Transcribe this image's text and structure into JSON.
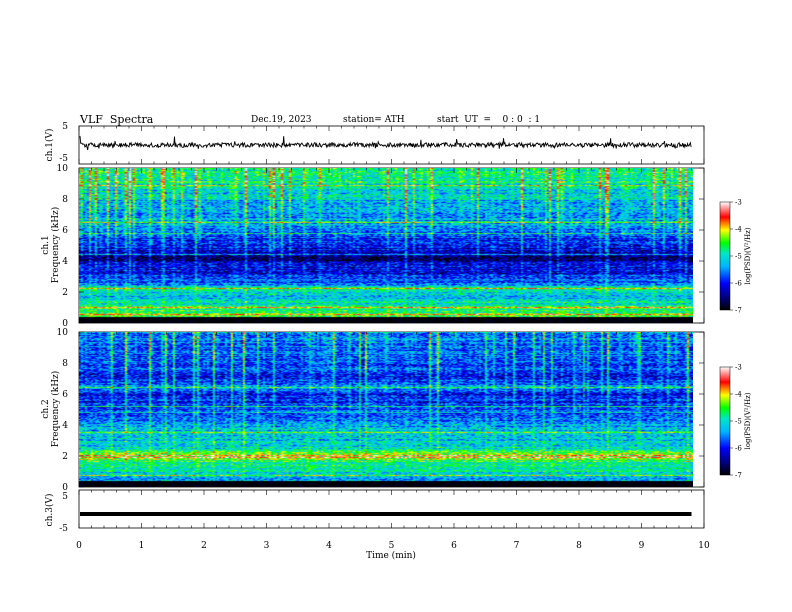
{
  "header": {
    "title": "VLF  Spectra",
    "date": "Dec.19, 2023",
    "station": "station= ATH",
    "start": "start  UT  =    0 : 0  : 1"
  },
  "chart_data": [
    {
      "type": "line",
      "panel": "ch1-waveform",
      "ylabel": "ch.1(V)",
      "ylim": [
        -5,
        5
      ],
      "yticks": [
        "5",
        "-5"
      ],
      "xlim": [
        0,
        10
      ],
      "data_end_min": 9.8,
      "baseline_v": 0.0,
      "noise_amplitude_v": 0.6,
      "spike_amplitude_v": 2.0
    },
    {
      "type": "heatmap",
      "panel": "ch1-spectrogram",
      "ylabel_channel": "ch.1",
      "ylabel": "Frequency  (kHz)",
      "ylim": [
        0,
        10
      ],
      "yticks": [
        "0",
        "2",
        "4",
        "6",
        "8",
        "10"
      ],
      "xlim": [
        0,
        10
      ],
      "data_end_min": 9.8,
      "colorbar": {
        "label": "log(PSD)(V²/Hz)",
        "range": [
          -7,
          -3
        ],
        "ticks": [
          "-3",
          "-4",
          "-5",
          "-6",
          "-7"
        ]
      },
      "profile_khz_logpsd": [
        [
          0,
          -4.8
        ],
        [
          0.4,
          -4.5
        ],
        [
          0.9,
          -4.8
        ],
        [
          1.5,
          -5.1
        ],
        [
          1.9,
          -5.2
        ],
        [
          2.2,
          -4.9
        ],
        [
          2.6,
          -5.8
        ],
        [
          3.2,
          -6.1
        ],
        [
          3.8,
          -6.3
        ],
        [
          4.2,
          -6.6
        ],
        [
          4.6,
          -6.2
        ],
        [
          5.5,
          -5.9
        ],
        [
          6.2,
          -5.6
        ],
        [
          6.5,
          -5.3
        ],
        [
          7.0,
          -5.5
        ],
        [
          8.0,
          -5.3
        ],
        [
          9.0,
          -5.0
        ],
        [
          10.0,
          -4.9
        ]
      ],
      "lines_khz": [
        0.5,
        1.0,
        2.2,
        4.4,
        5.8,
        6.5,
        8.9
      ]
    },
    {
      "type": "heatmap",
      "panel": "ch2-spectrogram",
      "ylabel_channel": "ch.2",
      "ylabel": "Frequency  (kHz)",
      "ylim": [
        0,
        10
      ],
      "yticks": [
        "0",
        "2",
        "4",
        "6",
        "8",
        "10"
      ],
      "xlim": [
        0,
        10
      ],
      "data_end_min": 9.8,
      "colorbar": {
        "label": "log(PSD)(V²/Hz)",
        "range": [
          -7,
          -3
        ],
        "ticks": [
          "-3",
          "-4",
          "-5",
          "-6",
          "-7"
        ]
      },
      "profile_khz_logpsd": [
        [
          0,
          -5.2
        ],
        [
          0.5,
          -5.4
        ],
        [
          1.0,
          -5.0
        ],
        [
          1.5,
          -4.9
        ],
        [
          1.9,
          -4.3
        ],
        [
          2.1,
          -4.2
        ],
        [
          2.4,
          -5.0
        ],
        [
          3.0,
          -5.2
        ],
        [
          3.5,
          -5.1
        ],
        [
          4.2,
          -5.6
        ],
        [
          5.0,
          -5.9
        ],
        [
          6.0,
          -6.1
        ],
        [
          6.4,
          -5.4
        ],
        [
          7.0,
          -6.0
        ],
        [
          8.0,
          -5.8
        ],
        [
          9.0,
          -5.7
        ],
        [
          10.0,
          -5.5
        ]
      ],
      "lines_khz": [
        0.7,
        1.9,
        2.0,
        3.5,
        4.8,
        5.2,
        6.4
      ]
    },
    {
      "type": "line",
      "panel": "ch3-waveform",
      "ylabel": "ch.3(V)",
      "ylim": [
        -5,
        5
      ],
      "yticks": [
        "5",
        "-5"
      ],
      "xlim": [
        0,
        10
      ],
      "data_end_min": 9.8,
      "baseline_v": -1.3,
      "xlabel": "Time  (min)",
      "xticks": [
        "0",
        "1",
        "2",
        "3",
        "4",
        "5",
        "6",
        "7",
        "8",
        "9",
        "10"
      ]
    }
  ]
}
